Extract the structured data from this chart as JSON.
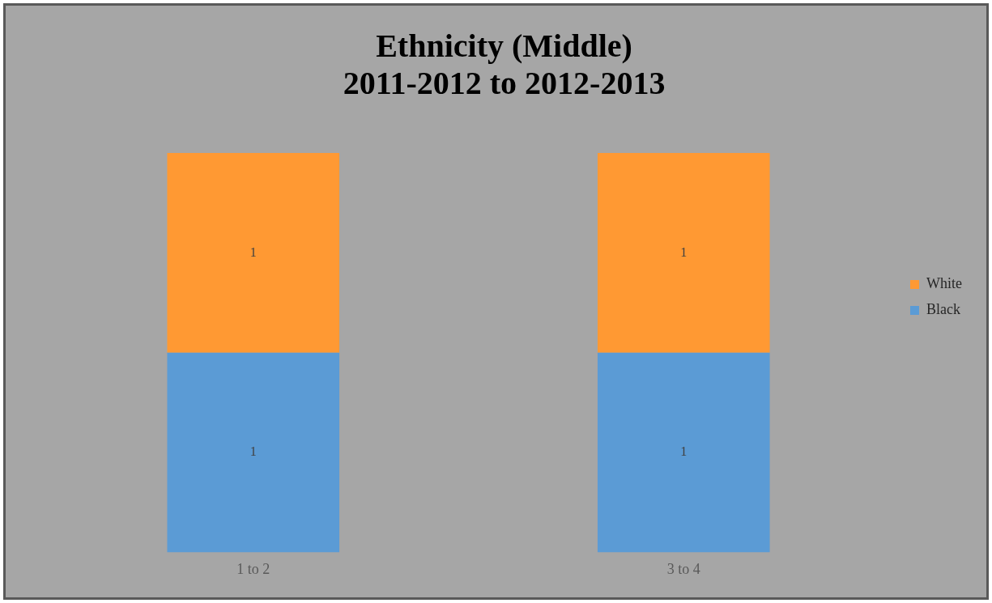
{
  "chart_data": {
    "type": "bar",
    "title": "Ethnicity (Middle)\n2011-2012 to 2012-2013",
    "categories": [
      "1 to 2",
      "3 to 4"
    ],
    "stacked": true,
    "data_labels": true,
    "legend": "right",
    "grid": false,
    "series": [
      {
        "name": "Black",
        "color": "#5b9bd5",
        "values": [
          1,
          1
        ]
      },
      {
        "name": "White",
        "color": "#ff9933",
        "values": [
          1,
          1
        ]
      }
    ]
  }
}
